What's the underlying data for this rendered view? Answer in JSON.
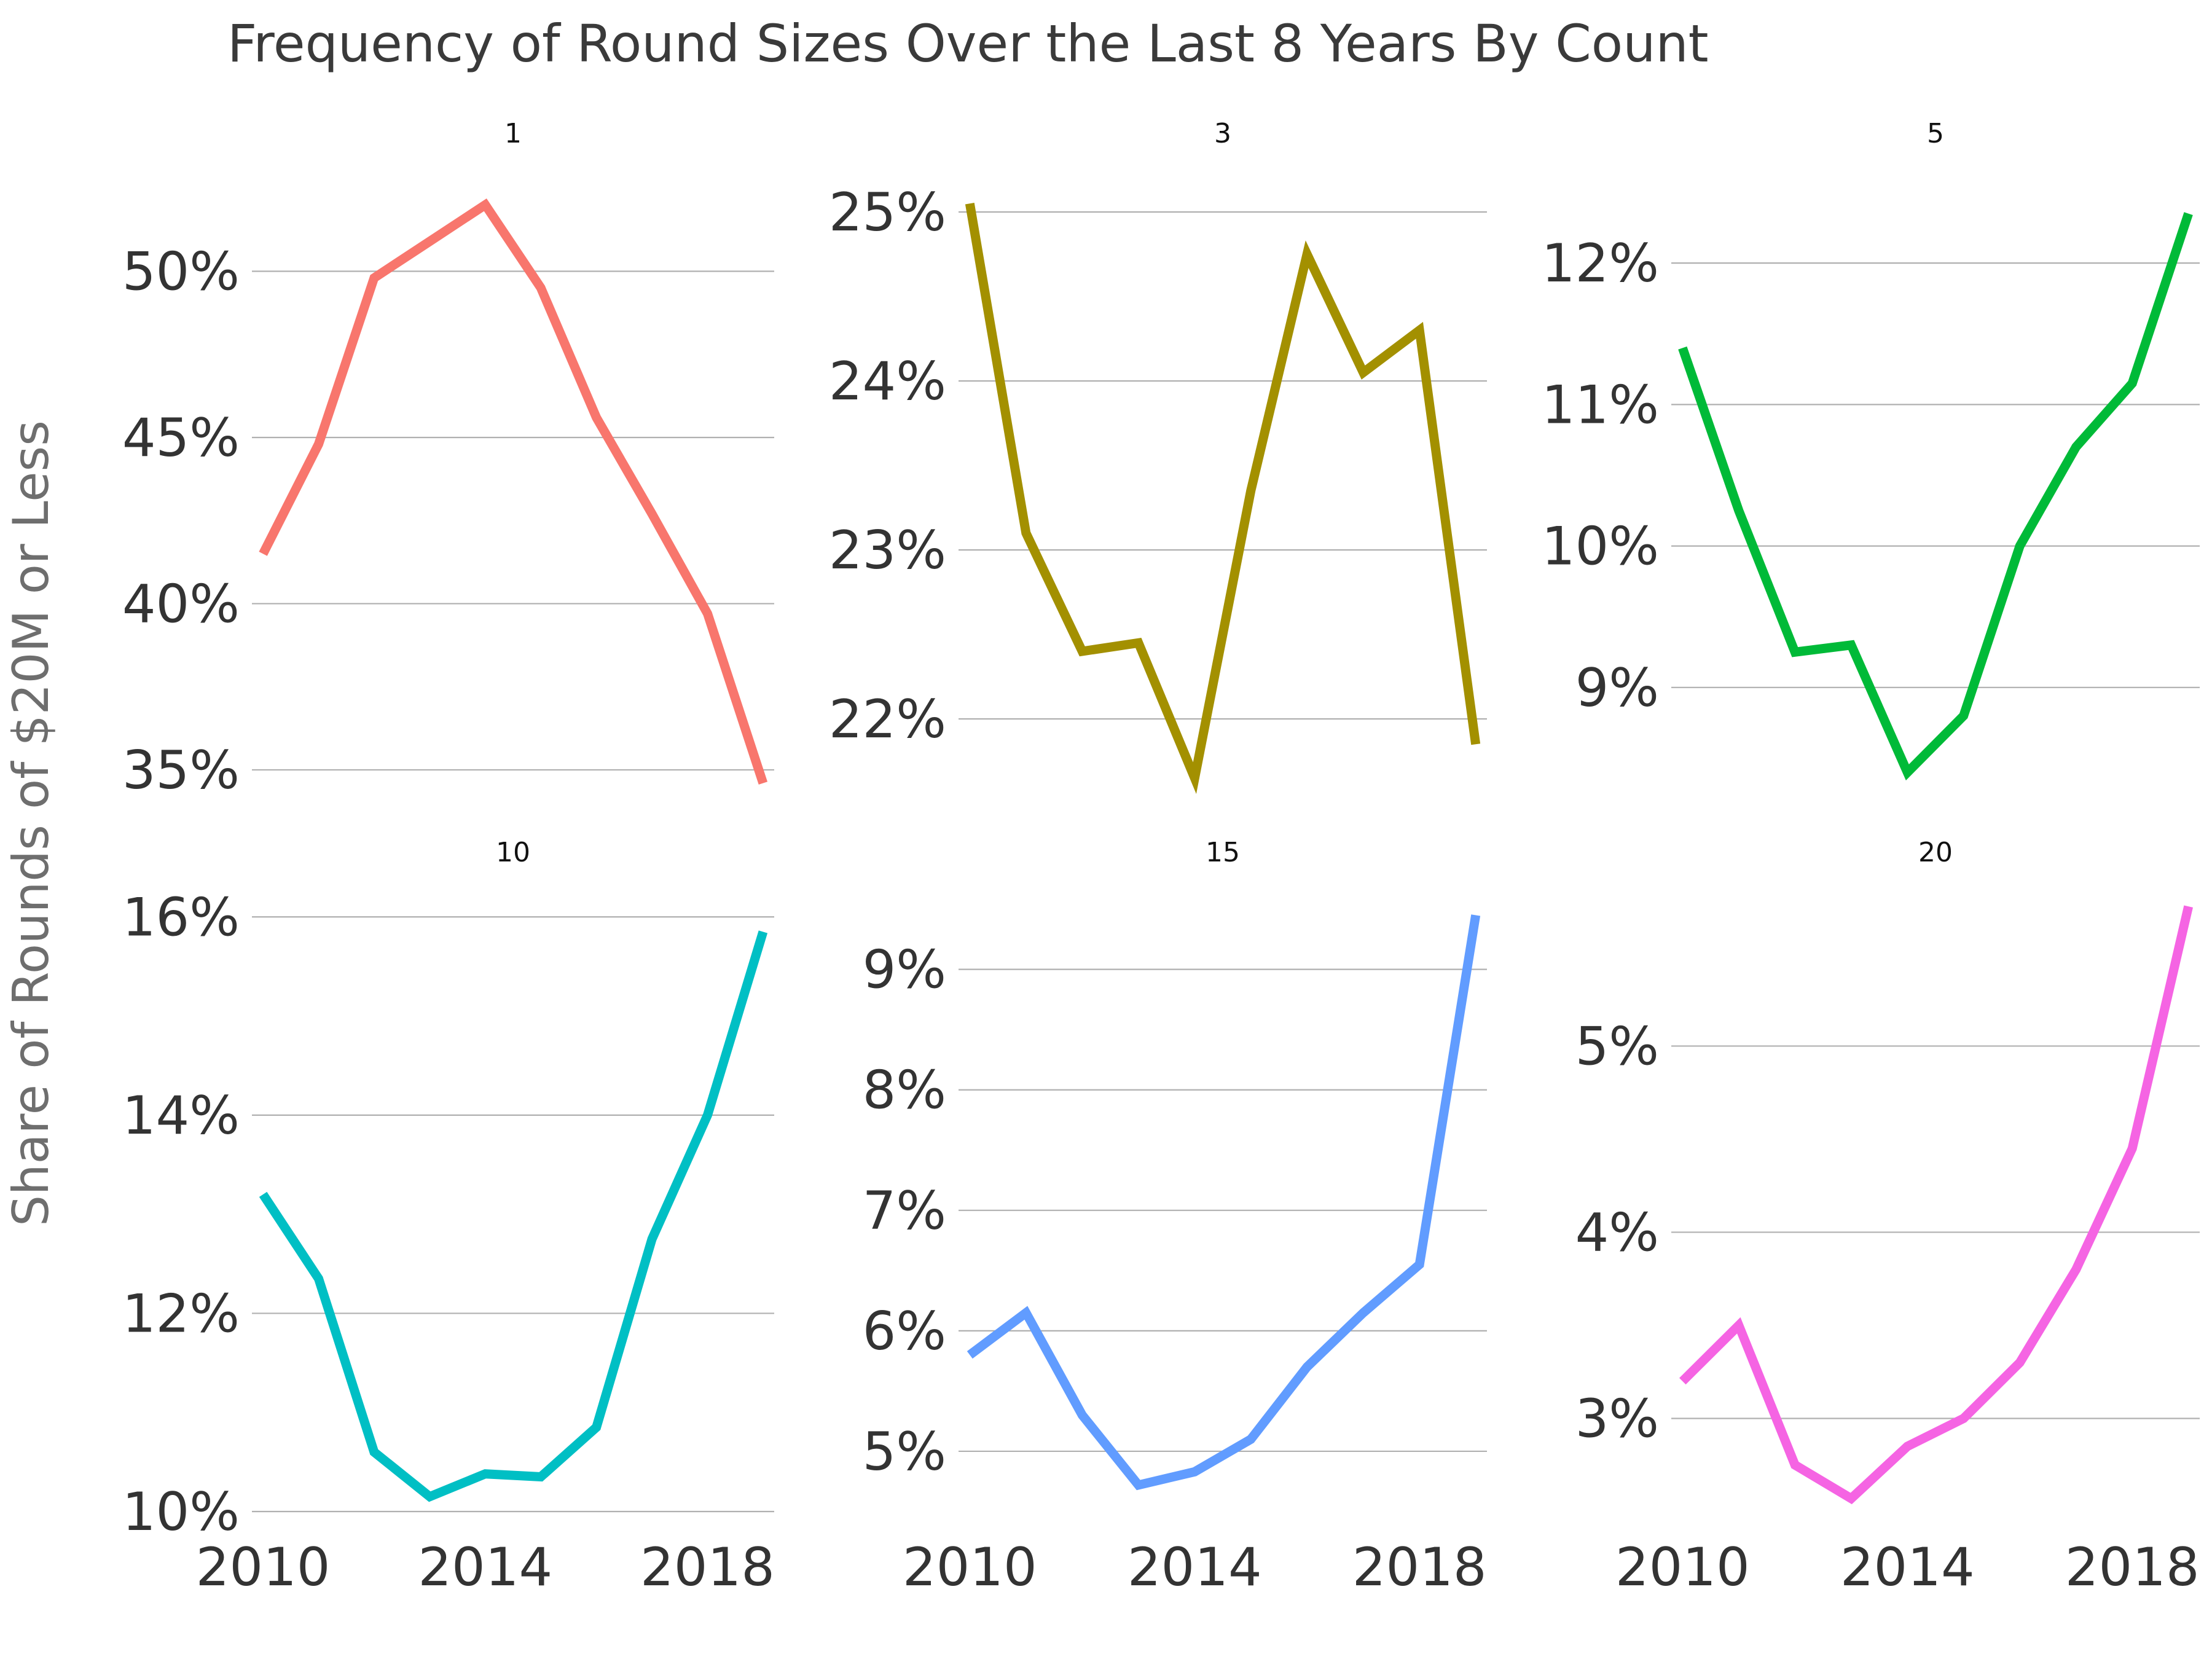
{
  "chart_data": {
    "type": "line",
    "title": "Frequency of Round Sizes Over the Last 8 Years By Count",
    "ylabel": "Share of Rounds of $20M or Less",
    "xlabel": "",
    "x": [
      2010,
      2011,
      2012,
      2013,
      2014,
      2015,
      2016,
      2017,
      2018,
      2019
    ],
    "xticks": [
      2010,
      2014,
      2018
    ],
    "xlim": [
      2009.8,
      2019.2
    ],
    "grid": "horizontal",
    "panels": [
      {
        "name": "1",
        "color": "#F8766D",
        "ylim": [
          34.5,
          52.8
        ],
        "yticks": [
          35,
          40,
          45,
          50
        ],
        "yticklabels": [
          "35%",
          "40%",
          "45%",
          "50%"
        ],
        "values": [
          41.5,
          44.8,
          49.8,
          50.9,
          52.0,
          49.5,
          45.6,
          42.7,
          39.7,
          34.6
        ]
      },
      {
        "name": "3",
        "color": "#A39000",
        "ylim": [
          21.6,
          25.2
        ],
        "yticks": [
          22,
          23,
          24,
          25
        ],
        "yticklabels": [
          "22%",
          "23%",
          "24%",
          "25%"
        ],
        "values": [
          25.05,
          23.1,
          22.4,
          22.45,
          21.65,
          23.35,
          24.75,
          24.05,
          24.3,
          21.85
        ]
      },
      {
        "name": "5",
        "color": "#00BA38",
        "ylim": [
          8.3,
          12.6
        ],
        "yticks": [
          9,
          10,
          11,
          12
        ],
        "yticklabels": [
          "9%",
          "10%",
          "11%",
          "12%"
        ],
        "values": [
          11.4,
          10.25,
          9.25,
          9.3,
          8.4,
          8.8,
          10.0,
          10.7,
          11.15,
          12.35
        ]
      },
      {
        "name": "10",
        "color": "#00BFC4",
        "ylim": [
          10.0,
          16.2
        ],
        "yticks": [
          10,
          12,
          14,
          16
        ],
        "yticklabels": [
          "10%",
          "12%",
          "14%",
          "16%"
        ],
        "values": [
          13.2,
          12.35,
          10.6,
          10.15,
          10.38,
          10.35,
          10.85,
          12.75,
          14.0,
          15.85
        ]
      },
      {
        "name": "15",
        "color": "#619CFF",
        "ylim": [
          4.5,
          9.6
        ],
        "yticks": [
          5,
          6,
          7,
          8,
          9
        ],
        "yticklabels": [
          "5%",
          "6%",
          "7%",
          "8%",
          "9%"
        ],
        "values": [
          5.8,
          6.15,
          5.3,
          4.72,
          4.83,
          5.1,
          5.7,
          6.15,
          6.55,
          9.45
        ]
      },
      {
        "name": "20",
        "color": "#F564E3",
        "ylim": [
          2.5,
          5.8
        ],
        "yticks": [
          3,
          4,
          5
        ],
        "yticklabels": [
          "3%",
          "4%",
          "5%"
        ],
        "values": [
          3.2,
          3.5,
          2.75,
          2.57,
          2.85,
          3.0,
          3.3,
          3.8,
          4.45,
          5.75
        ]
      }
    ]
  }
}
